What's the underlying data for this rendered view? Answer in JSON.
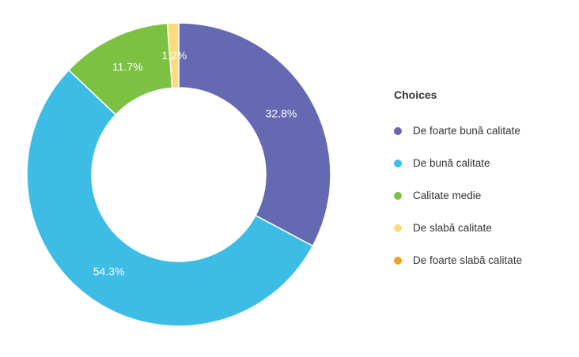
{
  "chart_data": {
    "type": "pie",
    "donut": true,
    "legend_title": "Choices",
    "legend_position": "right",
    "slices": [
      {
        "label": "De foarte bună calitate",
        "value": 32.8,
        "value_label": "32.8%",
        "color": "#6569b1"
      },
      {
        "label": "De bună calitate",
        "value": 54.3,
        "value_label": "54.3%",
        "color": "#3dbde6"
      },
      {
        "label": "Calitate medie",
        "value": 11.7,
        "value_label": "11.7%",
        "color": "#7dc143"
      },
      {
        "label": "De slabă calitate",
        "value": 1.2,
        "value_label": "1.2%",
        "color": "#fbdb7b"
      },
      {
        "label": "De foarte slabă calitate",
        "value": 0,
        "value_label": "",
        "color": "#f0a020"
      }
    ]
  }
}
